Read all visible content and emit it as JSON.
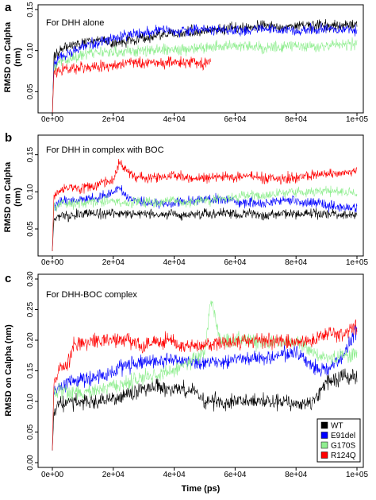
{
  "colors": {
    "WT": "#000000",
    "E91del": "#0000ff",
    "G170S": "#90ee90",
    "R124Q": "#ff0000",
    "frame": "#000000",
    "background": "#ffffff"
  },
  "legend": {
    "placement": "bottom-right of panel c",
    "entries": [
      "WT",
      "E91del",
      "G170S",
      "R124Q"
    ]
  },
  "chart_data": [
    {
      "type": "line",
      "panel_letter": "a",
      "title": "For DHH alone",
      "xlabel": "",
      "ylabel": "RMSD on Calpha\n(nm)",
      "xlim": [
        0,
        100000
      ],
      "ylim": [
        0.03,
        0.15
      ],
      "grid": false,
      "x_ticks": [
        0,
        20000,
        40000,
        60000,
        80000,
        100000
      ],
      "x_tick_labels": [
        "0e+00",
        "2e+04",
        "4e+04",
        "6e+04",
        "8e+04",
        "1e+05"
      ],
      "y_ticks": [
        0.05,
        0.1,
        0.15
      ],
      "y_tick_labels": [
        "0.05",
        "0.10",
        "0.15"
      ],
      "series": [
        {
          "name": "WT",
          "x": [
            0,
            500,
            2000,
            5000,
            10000,
            15000,
            20000,
            25000,
            30000,
            35000,
            40000,
            45000,
            50000,
            55000,
            60000,
            65000,
            70000,
            75000,
            80000,
            85000,
            90000,
            95000,
            100000
          ],
          "values": [
            0.02,
            0.09,
            0.1,
            0.105,
            0.11,
            0.112,
            0.11,
            0.112,
            0.115,
            0.118,
            0.12,
            0.122,
            0.125,
            0.126,
            0.128,
            0.128,
            0.13,
            0.129,
            0.13,
            0.13,
            0.131,
            0.13,
            0.132
          ]
        },
        {
          "name": "E91del",
          "x": [
            0,
            500,
            2000,
            5000,
            10000,
            15000,
            20000,
            25000,
            30000,
            35000,
            40000,
            45000,
            50000,
            55000,
            60000,
            65000,
            70000,
            75000,
            80000,
            85000,
            90000,
            95000,
            100000
          ],
          "values": [
            0.02,
            0.08,
            0.09,
            0.095,
            0.105,
            0.11,
            0.115,
            0.12,
            0.122,
            0.125,
            0.124,
            0.125,
            0.126,
            0.125,
            0.124,
            0.125,
            0.126,
            0.125,
            0.124,
            0.125,
            0.126,
            0.125,
            0.125
          ]
        },
        {
          "name": "G170S",
          "x": [
            0,
            500,
            2000,
            5000,
            10000,
            15000,
            20000,
            25000,
            30000,
            35000,
            40000,
            45000,
            50000,
            55000,
            60000,
            65000,
            70000,
            75000,
            80000,
            85000,
            90000,
            95000,
            100000
          ],
          "values": [
            0.02,
            0.078,
            0.085,
            0.088,
            0.095,
            0.098,
            0.098,
            0.1,
            0.1,
            0.102,
            0.1,
            0.102,
            0.105,
            0.105,
            0.106,
            0.105,
            0.104,
            0.105,
            0.106,
            0.105,
            0.106,
            0.107,
            0.108
          ]
        },
        {
          "name": "R124Q",
          "x": [
            0,
            500,
            2000,
            5000,
            10000,
            15000,
            20000,
            25000,
            30000,
            35000,
            40000,
            45000,
            50000,
            52000
          ],
          "values": [
            0.02,
            0.075,
            0.075,
            0.078,
            0.08,
            0.08,
            0.082,
            0.085,
            0.085,
            0.085,
            0.085,
            0.085,
            0.085,
            0.088
          ]
        }
      ]
    },
    {
      "type": "line",
      "panel_letter": "b",
      "title": "For DHH in complex with BOC",
      "xlabel": "",
      "ylabel": "RMSD on Calpha\n(nm)",
      "xlim": [
        0,
        100000
      ],
      "ylim": [
        0.02,
        0.17
      ],
      "grid": false,
      "x_ticks": [
        0,
        20000,
        40000,
        60000,
        80000,
        100000
      ],
      "x_tick_labels": [
        "0e+00",
        "2e+04",
        "4e+04",
        "6e+04",
        "8e+04",
        "1e+05"
      ],
      "y_ticks": [
        0.05,
        0.1,
        0.15
      ],
      "y_tick_labels": [
        "0.05",
        "0.10",
        "0.15"
      ],
      "series": [
        {
          "name": "WT",
          "x": [
            0,
            500,
            2000,
            5000,
            10000,
            15000,
            20000,
            25000,
            30000,
            35000,
            40000,
            45000,
            50000,
            55000,
            60000,
            65000,
            70000,
            75000,
            80000,
            85000,
            90000,
            95000,
            100000
          ],
          "values": [
            0.02,
            0.065,
            0.068,
            0.068,
            0.07,
            0.07,
            0.072,
            0.07,
            0.07,
            0.068,
            0.07,
            0.07,
            0.07,
            0.072,
            0.07,
            0.07,
            0.068,
            0.07,
            0.07,
            0.072,
            0.07,
            0.068,
            0.068
          ]
        },
        {
          "name": "E91del",
          "x": [
            0,
            500,
            2000,
            5000,
            10000,
            15000,
            20000,
            22000,
            25000,
            30000,
            35000,
            40000,
            45000,
            50000,
            55000,
            60000,
            65000,
            70000,
            75000,
            80000,
            85000,
            90000,
            95000,
            100000
          ],
          "values": [
            0.02,
            0.08,
            0.085,
            0.088,
            0.09,
            0.092,
            0.098,
            0.105,
            0.09,
            0.085,
            0.085,
            0.085,
            0.088,
            0.09,
            0.09,
            0.088,
            0.085,
            0.085,
            0.088,
            0.088,
            0.085,
            0.082,
            0.08,
            0.078
          ]
        },
        {
          "name": "G170S",
          "x": [
            0,
            500,
            2000,
            5000,
            10000,
            15000,
            20000,
            25000,
            30000,
            35000,
            40000,
            45000,
            50000,
            55000,
            60000,
            65000,
            70000,
            75000,
            80000,
            85000,
            90000,
            95000,
            100000
          ],
          "values": [
            0.02,
            0.078,
            0.082,
            0.085,
            0.085,
            0.088,
            0.088,
            0.085,
            0.085,
            0.085,
            0.088,
            0.085,
            0.088,
            0.09,
            0.092,
            0.095,
            0.095,
            0.098,
            0.1,
            0.1,
            0.102,
            0.1,
            0.098
          ]
        },
        {
          "name": "R124Q",
          "x": [
            0,
            500,
            2000,
            5000,
            10000,
            15000,
            20000,
            22000,
            25000,
            30000,
            35000,
            40000,
            45000,
            50000,
            55000,
            60000,
            65000,
            70000,
            75000,
            80000,
            85000,
            90000,
            95000,
            100000
          ],
          "values": [
            0.02,
            0.095,
            0.1,
            0.105,
            0.105,
            0.11,
            0.115,
            0.14,
            0.125,
            0.118,
            0.12,
            0.122,
            0.12,
            0.118,
            0.12,
            0.12,
            0.122,
            0.118,
            0.118,
            0.12,
            0.122,
            0.125,
            0.125,
            0.128
          ]
        }
      ]
    },
    {
      "type": "line",
      "panel_letter": "c",
      "title": "For DHH-BOC complex",
      "xlabel": "Time (ps)",
      "ylabel": "RMSD on Calpha (nm)",
      "xlim": [
        0,
        100000
      ],
      "ylim": [
        0,
        0.3
      ],
      "grid": false,
      "x_ticks": [
        0,
        20000,
        40000,
        60000,
        80000,
        100000
      ],
      "x_tick_labels": [
        "0e+00",
        "2e+04",
        "4e+04",
        "6e+04",
        "8e+04",
        "1e+05"
      ],
      "y_ticks": [
        0.0,
        0.05,
        0.1,
        0.15,
        0.2,
        0.25,
        0.3
      ],
      "y_tick_labels": [
        "0.00",
        "0.05",
        "0.10",
        "0.15",
        "0.20",
        "0.25",
        "0.30"
      ],
      "series": [
        {
          "name": "WT",
          "x": [
            0,
            500,
            2000,
            5000,
            10000,
            15000,
            20000,
            25000,
            30000,
            35000,
            40000,
            45000,
            50000,
            55000,
            60000,
            65000,
            70000,
            75000,
            80000,
            85000,
            90000,
            95000,
            100000
          ],
          "values": [
            0.02,
            0.08,
            0.095,
            0.098,
            0.1,
            0.1,
            0.105,
            0.11,
            0.12,
            0.125,
            0.12,
            0.12,
            0.1,
            0.1,
            0.1,
            0.1,
            0.1,
            0.1,
            0.095,
            0.098,
            0.13,
            0.14,
            0.14
          ]
        },
        {
          "name": "E91del",
          "x": [
            0,
            500,
            2000,
            5000,
            10000,
            15000,
            20000,
            25000,
            30000,
            35000,
            40000,
            45000,
            50000,
            55000,
            60000,
            65000,
            70000,
            75000,
            80000,
            85000,
            90000,
            95000,
            100000
          ],
          "values": [
            0.02,
            0.12,
            0.125,
            0.13,
            0.135,
            0.14,
            0.15,
            0.16,
            0.165,
            0.165,
            0.17,
            0.165,
            0.16,
            0.165,
            0.17,
            0.17,
            0.17,
            0.175,
            0.18,
            0.16,
            0.15,
            0.17,
            0.22
          ]
        },
        {
          "name": "G170S",
          "x": [
            0,
            500,
            2000,
            5000,
            10000,
            15000,
            20000,
            25000,
            30000,
            35000,
            40000,
            45000,
            50000,
            52000,
            55000,
            60000,
            65000,
            70000,
            75000,
            80000,
            85000,
            90000,
            95000,
            100000
          ],
          "values": [
            0.02,
            0.11,
            0.12,
            0.115,
            0.115,
            0.12,
            0.125,
            0.13,
            0.14,
            0.145,
            0.15,
            0.165,
            0.18,
            0.27,
            0.2,
            0.2,
            0.2,
            0.195,
            0.195,
            0.2,
            0.18,
            0.17,
            0.175,
            0.18
          ]
        },
        {
          "name": "R124Q",
          "x": [
            0,
            500,
            2000,
            5000,
            7000,
            10000,
            15000,
            20000,
            25000,
            30000,
            35000,
            40000,
            45000,
            50000,
            55000,
            60000,
            65000,
            70000,
            75000,
            80000,
            85000,
            90000,
            95000,
            100000
          ],
          "values": [
            0.02,
            0.13,
            0.15,
            0.16,
            0.19,
            0.195,
            0.2,
            0.2,
            0.2,
            0.19,
            0.2,
            0.195,
            0.19,
            0.19,
            0.195,
            0.195,
            0.2,
            0.2,
            0.2,
            0.195,
            0.2,
            0.21,
            0.21,
            0.22
          ]
        }
      ]
    }
  ]
}
